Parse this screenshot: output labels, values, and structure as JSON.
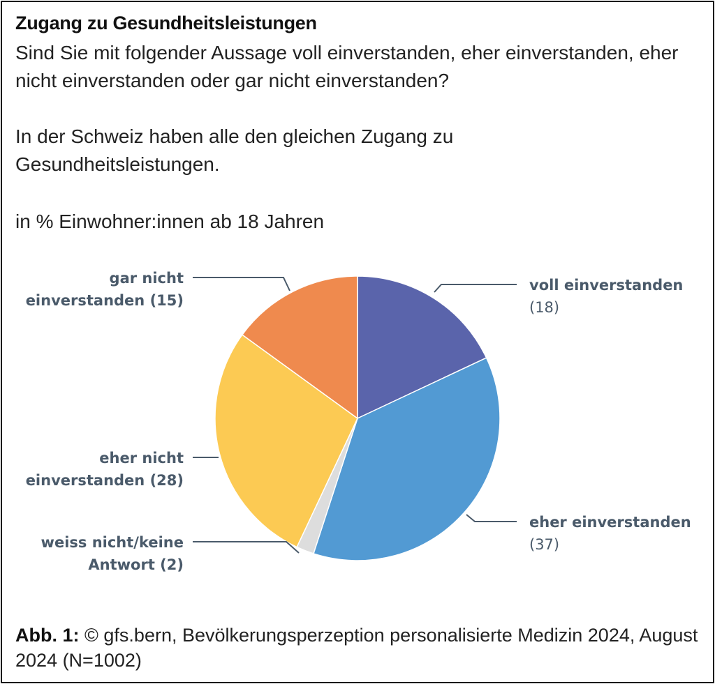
{
  "title": "Zugang zu Gesundheitsleistungen",
  "question": "Sind Sie mit folgender Aussage voll einverstanden, eher einverstanden, eher nicht einverstanden oder gar nicht einverstanden?",
  "statement": "In der Schweiz haben alle den gleichen Zugang zu Gesundheitsleistungen.",
  "unit": "in % Einwohner:innen ab 18 Jahren",
  "caption": {
    "label": "Abb. 1:",
    "text": "© gfs.bern, Bevölkerungsperzeption personalisierte Medizin 2024, August 2024 (N=1002)"
  },
  "chart_data": {
    "type": "pie",
    "title": "Zugang zu Gesundheitsleistungen",
    "unit": "%",
    "slices": [
      {
        "name": "voll einverstanden",
        "label_lines": [
          "voll einverstanden"
        ],
        "value": 18,
        "color": "#5a64ab"
      },
      {
        "name": "eher einverstanden",
        "label_lines": [
          "eher einverstanden"
        ],
        "value": 37,
        "color": "#529ad3"
      },
      {
        "name": "weiss nicht/keine Antwort",
        "label_lines": [
          "weiss nicht/keine",
          "Antwort"
        ],
        "value": 2,
        "color": "#dddddd"
      },
      {
        "name": "eher nicht einverstanden",
        "label_lines": [
          "eher nicht",
          "einverstanden"
        ],
        "value": 28,
        "color": "#fcca53"
      },
      {
        "name": "gar nicht einverstanden",
        "label_lines": [
          "gar nicht",
          "einverstanden"
        ],
        "value": 15,
        "color": "#ef8a4e"
      }
    ]
  }
}
